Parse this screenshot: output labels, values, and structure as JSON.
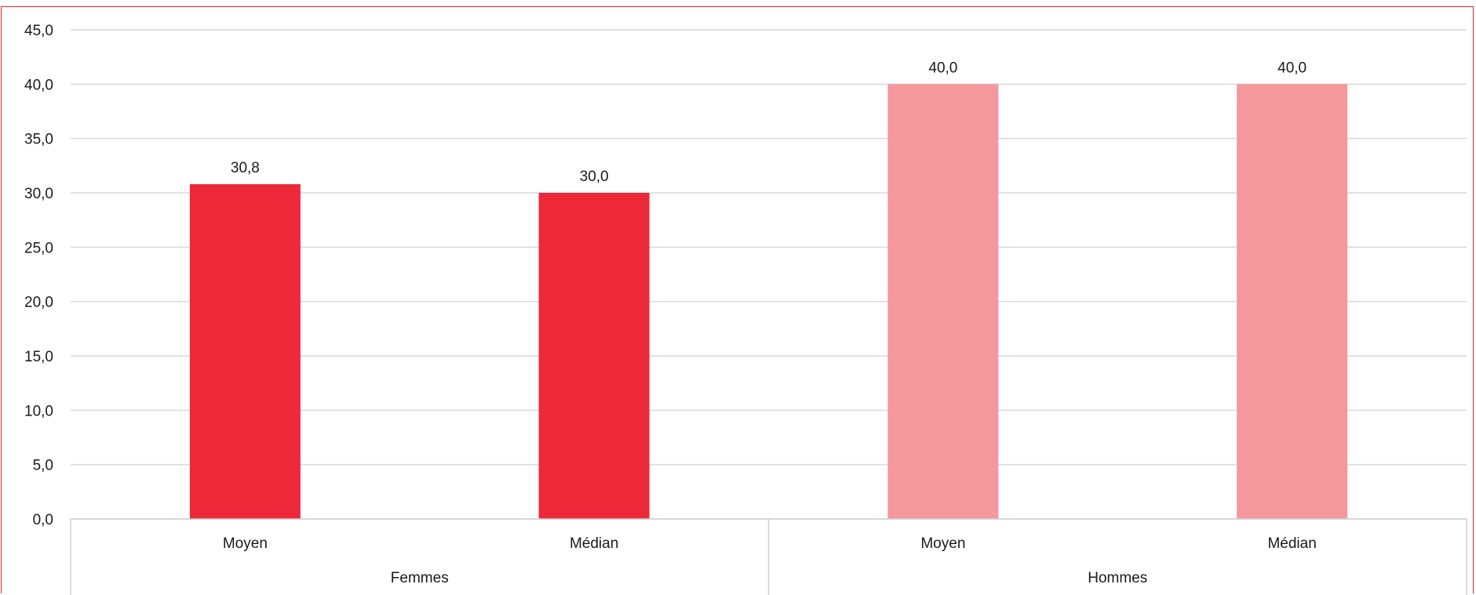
{
  "chart_data": {
    "type": "bar",
    "groups": [
      {
        "label": "Femmes",
        "categories": [
          "Moyen",
          "Médian"
        ],
        "values": [
          30.8,
          30.0
        ],
        "value_labels": [
          "30,8",
          "30,0"
        ],
        "color": "#ec2839"
      },
      {
        "label": "Hommes",
        "categories": [
          "Moyen",
          "Médian"
        ],
        "values": [
          40.0,
          40.0
        ],
        "value_labels": [
          "40,0",
          "40,0"
        ],
        "color": "#f4989e"
      }
    ],
    "ylim": [
      0,
      45
    ],
    "yticks": [
      0,
      5,
      10,
      15,
      20,
      25,
      30,
      35,
      40,
      45
    ],
    "ytick_labels": [
      "0,0",
      "5,0",
      "10,0",
      "15,0",
      "20,0",
      "25,0",
      "30,0",
      "35,0",
      "40,0",
      "45,0"
    ],
    "grid": true,
    "title": "",
    "xlabel": "",
    "ylabel": "",
    "colors": {
      "frame": "#e3242b",
      "grid": "#d9d9d9",
      "axis": "#d0d0d0"
    }
  }
}
